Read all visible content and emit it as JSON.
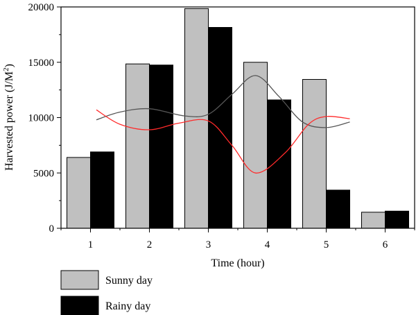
{
  "chart_data": {
    "type": "bar",
    "categories": [
      "1",
      "2",
      "3",
      "4",
      "5",
      "6"
    ],
    "series": [
      {
        "name": "Sunny day",
        "values": [
          6400,
          14850,
          19850,
          15000,
          13450,
          1450
        ],
        "color": "#c0c0c0"
      },
      {
        "name": "Rainy day",
        "values": [
          6900,
          14750,
          18150,
          11600,
          3450,
          1550
        ],
        "color": "#000000"
      }
    ],
    "trend_lines": [
      {
        "color": "#555555",
        "points": [
          [
            1.1,
            9800
          ],
          [
            1.5,
            10500
          ],
          [
            2.0,
            10800
          ],
          [
            2.6,
            10150
          ],
          [
            3.0,
            10300
          ],
          [
            3.4,
            12100
          ],
          [
            3.8,
            13800
          ],
          [
            4.2,
            11900
          ],
          [
            4.6,
            9600
          ],
          [
            5.0,
            9100
          ],
          [
            5.4,
            9600
          ]
        ]
      },
      {
        "color": "#ff2a2a",
        "points": [
          [
            1.1,
            10700
          ],
          [
            1.5,
            9400
          ],
          [
            2.0,
            8900
          ],
          [
            2.5,
            9500
          ],
          [
            3.0,
            9700
          ],
          [
            3.4,
            7500
          ],
          [
            3.8,
            5000
          ],
          [
            4.3,
            6800
          ],
          [
            4.7,
            9400
          ],
          [
            5.0,
            10100
          ],
          [
            5.4,
            9900
          ]
        ]
      }
    ],
    "xlabel": "Time (hour)",
    "ylabel": "Harvested power (J/M",
    "ylabel_sup": "2",
    "ylabel_close": ")",
    "ylim": [
      0,
      20000
    ],
    "yticks": [
      "0",
      "5000",
      "10000",
      "15000",
      "20000"
    ],
    "ytick_values": [
      0,
      5000,
      10000,
      15000,
      20000
    ],
    "legend_position": "bottom-left"
  }
}
